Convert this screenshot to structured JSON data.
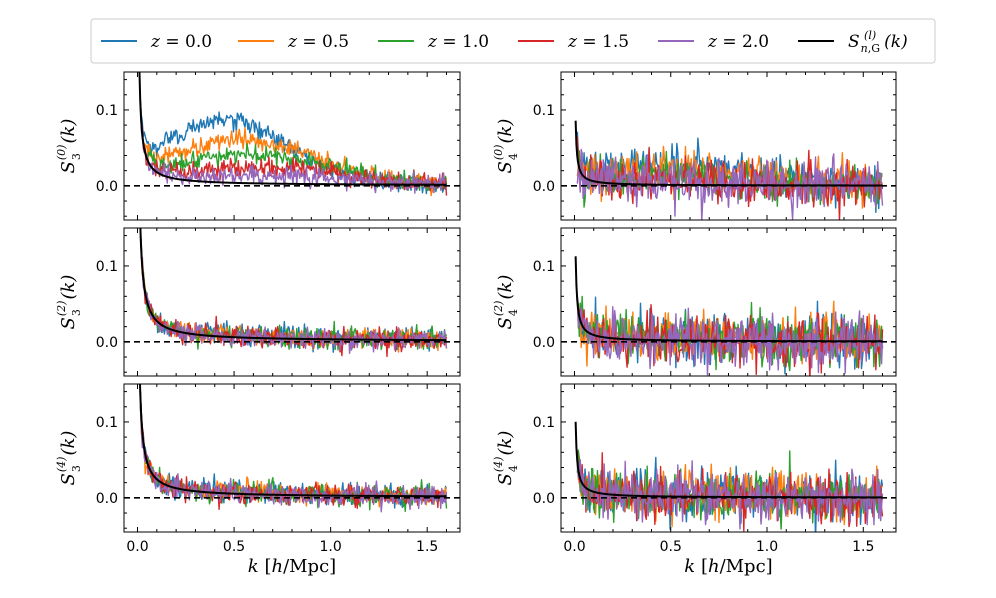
{
  "chart_data": {
    "type": "line",
    "layout": "3 rows x 2 columns",
    "x": {
      "range": [
        0.0,
        1.6
      ],
      "xlim": [
        -0.07,
        1.67
      ],
      "num_points": 320,
      "ticks": [
        0.0,
        0.5,
        1.0,
        1.5
      ],
      "tick_labels": [
        "0.0",
        "0.5",
        "1.0",
        "1.5"
      ],
      "label": "k [h/Mpc]"
    },
    "ylim": [
      -0.045,
      0.15
    ],
    "y_ticks": [
      0.0,
      0.1
    ],
    "y_tick_labels": [
      "0.0",
      "0.1"
    ],
    "reference_line": {
      "y": 0.0,
      "style": "dashed",
      "color": "#000000"
    },
    "legend": {
      "placement": "top, outside, single row",
      "entries": [
        {
          "label": "z = 0.0",
          "color": "#1f77b4"
        },
        {
          "label": "z = 0.5",
          "color": "#ff7f0e"
        },
        {
          "label": "z = 1.0",
          "color": "#2ca02c"
        },
        {
          "label": "z = 1.5",
          "color": "#d62728"
        },
        {
          "label": "z = 2.0",
          "color": "#9467bd"
        },
        {
          "label": "S_{n,G}^{(l)}(k)",
          "color": "#000000"
        }
      ]
    },
    "series_colors": {
      "z0.0": "#1f77b4",
      "z0.5": "#ff7f0e",
      "z1.0": "#2ca02c",
      "z1.5": "#d62728",
      "z2.0": "#9467bd",
      "gaussian": "#000000"
    },
    "panels": [
      {
        "id": "S3_0",
        "ylabel": "S_3^{(0)}(k)",
        "n": 3,
        "l": 0,
        "gauss_amp": 0.0018,
        "gauss_k0": 0.002,
        "series": [
          {
            "name": "z = 0.0",
            "excess_amp": 0.082,
            "excess_center": 0.45,
            "excess_width": 0.7,
            "noise": 0.006
          },
          {
            "name": "z = 0.5",
            "excess_amp": 0.058,
            "excess_center": 0.55,
            "excess_width": 0.75,
            "noise": 0.006
          },
          {
            "name": "z = 1.0",
            "excess_amp": 0.038,
            "excess_center": 0.62,
            "excess_width": 0.8,
            "noise": 0.006
          },
          {
            "name": "z = 1.5",
            "excess_amp": 0.022,
            "excess_center": 0.7,
            "excess_width": 0.8,
            "noise": 0.006
          },
          {
            "name": "z = 2.0",
            "excess_amp": 0.01,
            "excess_center": 0.7,
            "excess_width": 0.8,
            "noise": 0.006
          }
        ]
      },
      {
        "id": "S4_0",
        "ylabel": "S_4^{(0)}(k)",
        "n": 4,
        "l": 0,
        "gauss_amp": 0.0006,
        "gauss_k0": 0.001,
        "series": [
          {
            "name": "z = 0.0",
            "excess_amp": 0.028,
            "excess_center": 0.5,
            "excess_width": 0.9,
            "noise": 0.012
          },
          {
            "name": "z = 0.5",
            "excess_amp": 0.02,
            "excess_center": 0.5,
            "excess_width": 0.9,
            "noise": 0.013
          },
          {
            "name": "z = 1.0",
            "excess_amp": 0.012,
            "excess_center": 0.5,
            "excess_width": 0.9,
            "noise": 0.014
          },
          {
            "name": "z = 1.5",
            "excess_amp": 0.006,
            "excess_center": 0.5,
            "excess_width": 0.9,
            "noise": 0.015
          },
          {
            "name": "z = 2.0",
            "excess_amp": 0.002,
            "excess_center": 0.5,
            "excess_width": 0.9,
            "noise": 0.016
          }
        ]
      },
      {
        "id": "S3_2",
        "ylabel": "S_3^{(2)}(k)",
        "n": 3,
        "l": 2,
        "gauss_amp": 0.0028,
        "gauss_k0": 0.004,
        "series": [
          {
            "name": "z = 0.0",
            "excess_amp": 0.004,
            "excess_center": 0.6,
            "excess_width": 1.0,
            "noise": 0.007
          },
          {
            "name": "z = 0.5",
            "excess_amp": 0.003,
            "excess_center": 0.6,
            "excess_width": 1.0,
            "noise": 0.007
          },
          {
            "name": "z = 1.0",
            "excess_amp": 0.002,
            "excess_center": 0.6,
            "excess_width": 1.0,
            "noise": 0.007
          },
          {
            "name": "z = 1.5",
            "excess_amp": 0.001,
            "excess_center": 0.6,
            "excess_width": 1.0,
            "noise": 0.007
          },
          {
            "name": "z = 2.0",
            "excess_amp": 0.0,
            "excess_center": 0.6,
            "excess_width": 1.0,
            "noise": 0.007
          }
        ]
      },
      {
        "id": "S4_2",
        "ylabel": "S_4^{(2)}(k)",
        "n": 4,
        "l": 2,
        "gauss_amp": 0.0009,
        "gauss_k0": 0.002,
        "series": [
          {
            "name": "z = 0.0",
            "excess_amp": 0.005,
            "excess_center": 0.5,
            "excess_width": 1.0,
            "noise": 0.016
          },
          {
            "name": "z = 0.5",
            "excess_amp": 0.004,
            "excess_center": 0.5,
            "excess_width": 1.0,
            "noise": 0.016
          },
          {
            "name": "z = 1.0",
            "excess_amp": 0.002,
            "excess_center": 0.5,
            "excess_width": 1.0,
            "noise": 0.016
          },
          {
            "name": "z = 1.5",
            "excess_amp": 0.001,
            "excess_center": 0.5,
            "excess_width": 1.0,
            "noise": 0.016
          },
          {
            "name": "z = 2.0",
            "excess_amp": 0.0,
            "excess_center": 0.5,
            "excess_width": 1.0,
            "noise": 0.017
          }
        ]
      },
      {
        "id": "S3_4",
        "ylabel": "S_3^{(4)}(k)",
        "n": 3,
        "l": 4,
        "gauss_amp": 0.0025,
        "gauss_k0": 0.004,
        "series": [
          {
            "name": "z = 0.0",
            "excess_amp": 0.004,
            "excess_center": 0.6,
            "excess_width": 1.0,
            "noise": 0.007
          },
          {
            "name": "z = 0.5",
            "excess_amp": 0.003,
            "excess_center": 0.6,
            "excess_width": 1.0,
            "noise": 0.007
          },
          {
            "name": "z = 1.0",
            "excess_amp": 0.002,
            "excess_center": 0.6,
            "excess_width": 1.0,
            "noise": 0.007
          },
          {
            "name": "z = 1.5",
            "excess_amp": 0.001,
            "excess_center": 0.6,
            "excess_width": 1.0,
            "noise": 0.007
          },
          {
            "name": "z = 2.0",
            "excess_amp": 0.0,
            "excess_center": 0.6,
            "excess_width": 1.0,
            "noise": 0.007
          }
        ]
      },
      {
        "id": "S4_4",
        "ylabel": "S_4^{(4)}(k)",
        "n": 4,
        "l": 4,
        "gauss_amp": 0.0008,
        "gauss_k0": 0.002,
        "series": [
          {
            "name": "z = 0.0",
            "excess_amp": 0.005,
            "excess_center": 0.5,
            "excess_width": 1.0,
            "noise": 0.016
          },
          {
            "name": "z = 0.5",
            "excess_amp": 0.004,
            "excess_center": 0.5,
            "excess_width": 1.0,
            "noise": 0.016
          },
          {
            "name": "z = 1.0",
            "excess_amp": 0.002,
            "excess_center": 0.5,
            "excess_width": 1.0,
            "noise": 0.016
          },
          {
            "name": "z = 1.5",
            "excess_amp": 0.001,
            "excess_center": 0.5,
            "excess_width": 1.0,
            "noise": 0.016
          },
          {
            "name": "z = 2.0",
            "excess_amp": 0.0,
            "excess_center": 0.5,
            "excess_width": 1.0,
            "noise": 0.017
          }
        ]
      }
    ]
  }
}
